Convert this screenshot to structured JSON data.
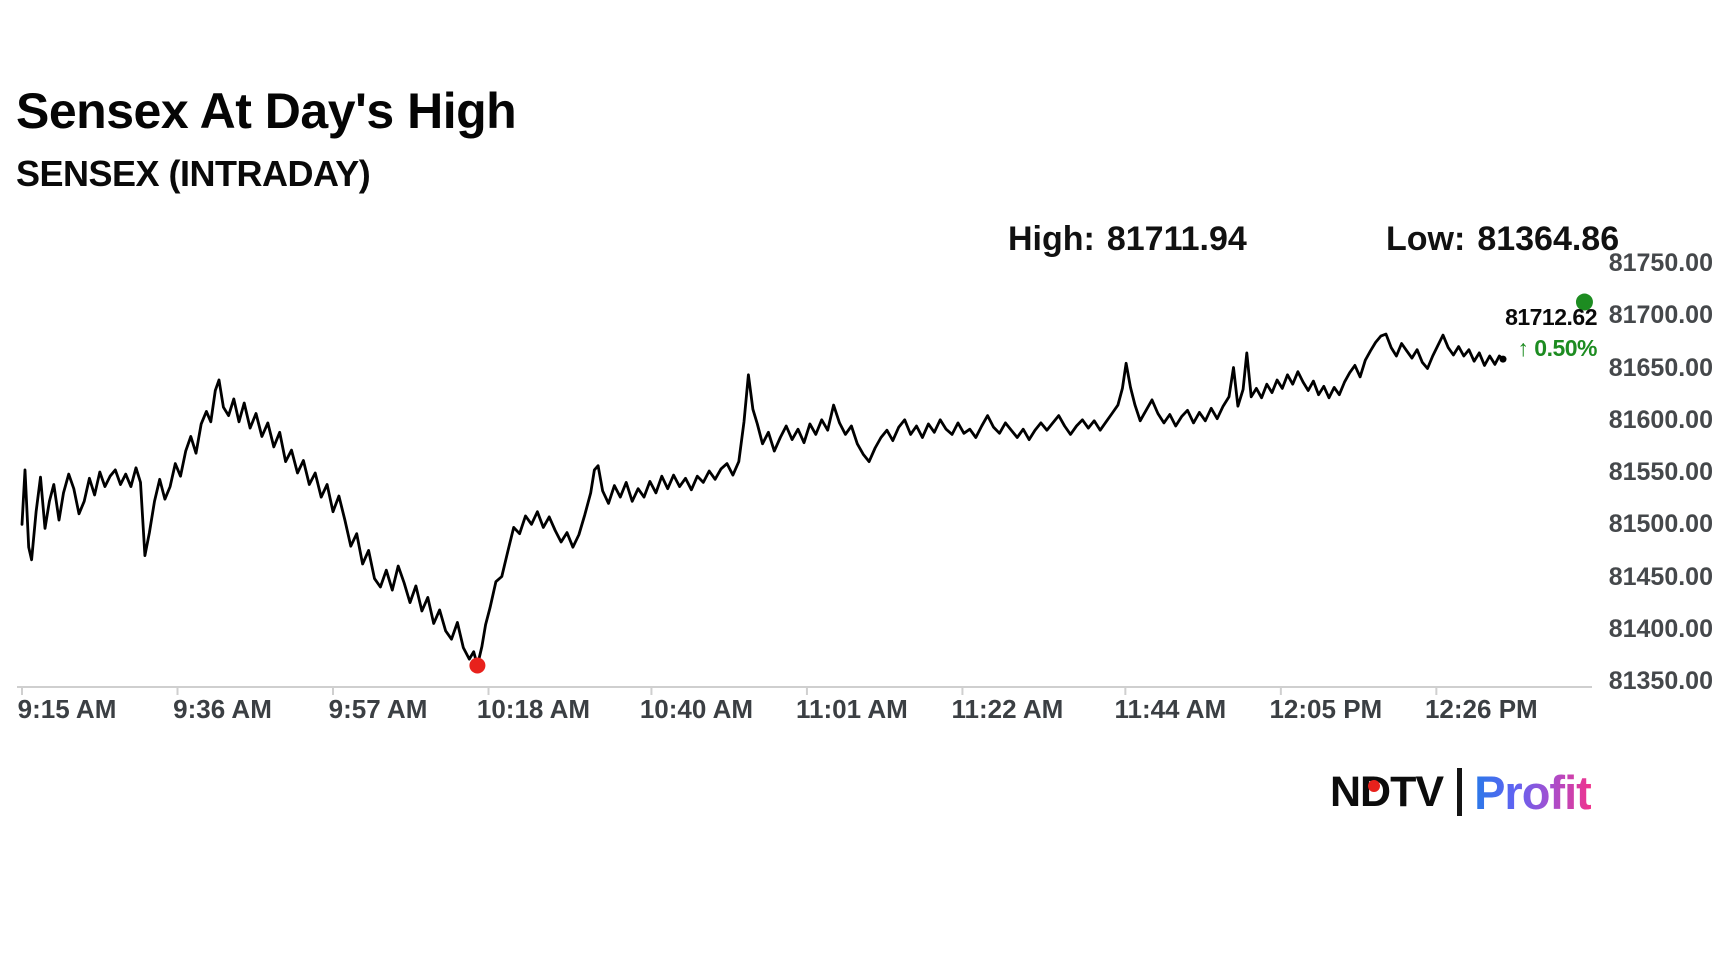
{
  "header": {
    "title": "Sensex At Day's High",
    "subtitle": "SENSEX (INTRADAY)"
  },
  "stats": {
    "high_label": "High:",
    "high_value": "81711.94",
    "low_label": "Low:",
    "low_value": "81364.86"
  },
  "live": {
    "price": "81712.62",
    "arrow": "↑",
    "change_pct": "0.50%"
  },
  "logo": {
    "ndtv": "NDTV",
    "divider": "|",
    "profit": "Profit"
  },
  "colors": {
    "line": "#000000",
    "background": "#ffffff",
    "axis": "#cfcfcf",
    "axis_label": "#45484b",
    "low_dot": "#e8211c",
    "live_dot": "#1d8c21",
    "change_green": "#1d8c21",
    "profit_gradient": [
      "#2a79e8",
      "#5f63f2",
      "#a44fd0",
      "#f1338c"
    ]
  },
  "chart_data": {
    "type": "line",
    "title": "SENSEX (INTRADAY)",
    "xlabel": "",
    "ylabel": "",
    "x_unit": "minutes after 9:15 AM",
    "ylim": [
      81350,
      81750
    ],
    "grid": false,
    "legend": false,
    "day_high": 81711.94,
    "day_low": 81364.86,
    "last_price": 81712.62,
    "change_pct": 0.5,
    "y_ticks": [
      {
        "value": 81750,
        "label": "81750.00"
      },
      {
        "value": 81700,
        "label": "81700.00"
      },
      {
        "value": 81650,
        "label": "81650.00"
      },
      {
        "value": 81600,
        "label": "81600.00"
      },
      {
        "value": 81550,
        "label": "81550.00"
      },
      {
        "value": 81500,
        "label": "81500.00"
      },
      {
        "value": 81450,
        "label": "81450.00"
      },
      {
        "value": 81400,
        "label": "81400.00"
      },
      {
        "value": 81350,
        "label": "81350.00"
      }
    ],
    "x_ticks": [
      {
        "t": 0,
        "label": "9:15 AM"
      },
      {
        "t": 21,
        "label": "9:36 AM"
      },
      {
        "t": 42,
        "label": "9:57 AM"
      },
      {
        "t": 63,
        "label": "10:18 AM"
      },
      {
        "t": 85,
        "label": "10:40 AM"
      },
      {
        "t": 106,
        "label": "11:01 AM"
      },
      {
        "t": 127,
        "label": "11:22 AM"
      },
      {
        "t": 149,
        "label": "11:44 AM"
      },
      {
        "t": 170,
        "label": "12:05 PM"
      },
      {
        "t": 191,
        "label": "12:26 PM"
      }
    ],
    "markers": {
      "low": {
        "t": 61.5,
        "value": 81364.86,
        "color": "#e8211c",
        "r": 8
      },
      "line_end": {
        "t": 200,
        "value": 81658,
        "color": "#000000",
        "r": 3.5
      },
      "live": {
        "t": 211,
        "value": 81712.62,
        "color": "#1d8c21",
        "r": 8.5
      }
    },
    "series": [
      {
        "name": "SENSEX",
        "color": "#000000",
        "points": [
          [
            0,
            81500
          ],
          [
            0.4,
            81552
          ],
          [
            0.9,
            81478
          ],
          [
            1.3,
            81466
          ],
          [
            1.9,
            81512
          ],
          [
            2.5,
            81545
          ],
          [
            3.1,
            81496
          ],
          [
            3.7,
            81522
          ],
          [
            4.3,
            81538
          ],
          [
            5,
            81504
          ],
          [
            5.6,
            81530
          ],
          [
            6.3,
            81548
          ],
          [
            7,
            81534
          ],
          [
            7.7,
            81510
          ],
          [
            8.4,
            81522
          ],
          [
            9.1,
            81544
          ],
          [
            9.8,
            81528
          ],
          [
            10.5,
            81550
          ],
          [
            11.2,
            81536
          ],
          [
            11.9,
            81546
          ],
          [
            12.6,
            81552
          ],
          [
            13.3,
            81538
          ],
          [
            14,
            81548
          ],
          [
            14.7,
            81536
          ],
          [
            15.4,
            81554
          ],
          [
            16,
            81540
          ],
          [
            16.6,
            81470
          ],
          [
            17.2,
            81492
          ],
          [
            17.9,
            81522
          ],
          [
            18.6,
            81543
          ],
          [
            19.3,
            81524
          ],
          [
            20,
            81536
          ],
          [
            20.7,
            81558
          ],
          [
            21.4,
            81546
          ],
          [
            22.1,
            81570
          ],
          [
            22.8,
            81584
          ],
          [
            23.5,
            81568
          ],
          [
            24.2,
            81596
          ],
          [
            24.9,
            81608
          ],
          [
            25.5,
            81598
          ],
          [
            26.1,
            81628
          ],
          [
            26.6,
            81638
          ],
          [
            27.2,
            81612
          ],
          [
            27.9,
            81604
          ],
          [
            28.6,
            81620
          ],
          [
            29.3,
            81598
          ],
          [
            30,
            81616
          ],
          [
            30.8,
            81592
          ],
          [
            31.6,
            81606
          ],
          [
            32.4,
            81584
          ],
          [
            33.2,
            81597
          ],
          [
            34,
            81574
          ],
          [
            34.8,
            81588
          ],
          [
            35.6,
            81560
          ],
          [
            36.4,
            81571
          ],
          [
            37.2,
            81549
          ],
          [
            38,
            81561
          ],
          [
            38.8,
            81538
          ],
          [
            39.6,
            81549
          ],
          [
            40.4,
            81526
          ],
          [
            41.2,
            81538
          ],
          [
            42,
            81512
          ],
          [
            42.8,
            81527
          ],
          [
            43.6,
            81504
          ],
          [
            44.4,
            81479
          ],
          [
            45.2,
            81491
          ],
          [
            46,
            81462
          ],
          [
            46.8,
            81475
          ],
          [
            47.6,
            81448
          ],
          [
            48.4,
            81440
          ],
          [
            49.2,
            81456
          ],
          [
            50,
            81437
          ],
          [
            50.8,
            81460
          ],
          [
            51.6,
            81444
          ],
          [
            52.4,
            81425
          ],
          [
            53.2,
            81441
          ],
          [
            54,
            81417
          ],
          [
            54.8,
            81430
          ],
          [
            55.6,
            81405
          ],
          [
            56.4,
            81418
          ],
          [
            57.2,
            81398
          ],
          [
            58,
            81390
          ],
          [
            58.8,
            81406
          ],
          [
            59.6,
            81382
          ],
          [
            60.4,
            81371
          ],
          [
            61,
            81378
          ],
          [
            61.5,
            81364.86
          ],
          [
            62.1,
            81383
          ],
          [
            62.6,
            81404
          ],
          [
            63.2,
            81420
          ],
          [
            64,
            81445
          ],
          [
            64.8,
            81450
          ],
          [
            65.6,
            81474
          ],
          [
            66.4,
            81497
          ],
          [
            67.2,
            81491
          ],
          [
            68,
            81508
          ],
          [
            68.8,
            81500
          ],
          [
            69.6,
            81512
          ],
          [
            70.4,
            81497
          ],
          [
            71.2,
            81507
          ],
          [
            72,
            81494
          ],
          [
            72.8,
            81483
          ],
          [
            73.6,
            81492
          ],
          [
            74.4,
            81478
          ],
          [
            75.2,
            81490
          ],
          [
            76,
            81509
          ],
          [
            76.8,
            81530
          ],
          [
            77.3,
            81552
          ],
          [
            77.8,
            81556
          ],
          [
            78.4,
            81532
          ],
          [
            79.2,
            81520
          ],
          [
            80,
            81537
          ],
          [
            80.8,
            81526
          ],
          [
            81.6,
            81540
          ],
          [
            82.4,
            81522
          ],
          [
            83.2,
            81534
          ],
          [
            84,
            81526
          ],
          [
            84.8,
            81541
          ],
          [
            85.6,
            81530
          ],
          [
            86.4,
            81546
          ],
          [
            87.2,
            81534
          ],
          [
            88,
            81547
          ],
          [
            88.8,
            81536
          ],
          [
            89.6,
            81544
          ],
          [
            90.4,
            81533
          ],
          [
            91.2,
            81546
          ],
          [
            92,
            81540
          ],
          [
            92.8,
            81551
          ],
          [
            93.6,
            81543
          ],
          [
            94.4,
            81553
          ],
          [
            95.2,
            81558
          ],
          [
            96,
            81547
          ],
          [
            96.8,
            81560
          ],
          [
            97.5,
            81598
          ],
          [
            98.1,
            81643
          ],
          [
            98.7,
            81610
          ],
          [
            99.3,
            81596
          ],
          [
            100,
            81577
          ],
          [
            100.8,
            81588
          ],
          [
            101.6,
            81570
          ],
          [
            102.4,
            81583
          ],
          [
            103.2,
            81594
          ],
          [
            104,
            81581
          ],
          [
            104.8,
            81591
          ],
          [
            105.6,
            81578
          ],
          [
            106.4,
            81596
          ],
          [
            107.2,
            81586
          ],
          [
            108,
            81600
          ],
          [
            108.8,
            81590
          ],
          [
            109.6,
            81614
          ],
          [
            110.4,
            81597
          ],
          [
            111.2,
            81586
          ],
          [
            112,
            81594
          ],
          [
            112.8,
            81577
          ],
          [
            113.6,
            81567
          ],
          [
            114.4,
            81560
          ],
          [
            115.2,
            81573
          ],
          [
            116,
            81583
          ],
          [
            116.8,
            81590
          ],
          [
            117.6,
            81580
          ],
          [
            118.4,
            81593
          ],
          [
            119.2,
            81600
          ],
          [
            120,
            81586
          ],
          [
            120.8,
            81594
          ],
          [
            121.6,
            81583
          ],
          [
            122.4,
            81596
          ],
          [
            123.2,
            81588
          ],
          [
            124,
            81600
          ],
          [
            124.8,
            81591
          ],
          [
            125.6,
            81586
          ],
          [
            126.4,
            81597
          ],
          [
            127.2,
            81587
          ],
          [
            128,
            81591
          ],
          [
            128.8,
            81583
          ],
          [
            129.6,
            81594
          ],
          [
            130.4,
            81604
          ],
          [
            131.2,
            81593
          ],
          [
            132,
            81587
          ],
          [
            132.8,
            81597
          ],
          [
            133.6,
            81590
          ],
          [
            134.4,
            81583
          ],
          [
            135.2,
            81591
          ],
          [
            136,
            81581
          ],
          [
            136.8,
            81590
          ],
          [
            137.6,
            81597
          ],
          [
            138.4,
            81590
          ],
          [
            139.2,
            81597
          ],
          [
            140,
            81604
          ],
          [
            140.8,
            81594
          ],
          [
            141.6,
            81586
          ],
          [
            142.4,
            81594
          ],
          [
            143.2,
            81600
          ],
          [
            144,
            81592
          ],
          [
            144.8,
            81599
          ],
          [
            145.6,
            81590
          ],
          [
            146.4,
            81598
          ],
          [
            147.2,
            81606
          ],
          [
            148,
            81614
          ],
          [
            148.6,
            81630
          ],
          [
            149.1,
            81654
          ],
          [
            149.7,
            81631
          ],
          [
            150.3,
            81614
          ],
          [
            151,
            81599
          ],
          [
            151.8,
            81609
          ],
          [
            152.6,
            81619
          ],
          [
            153.4,
            81606
          ],
          [
            154.2,
            81597
          ],
          [
            155,
            81605
          ],
          [
            155.8,
            81594
          ],
          [
            156.6,
            81603
          ],
          [
            157.4,
            81609
          ],
          [
            158.2,
            81597
          ],
          [
            159,
            81607
          ],
          [
            159.8,
            81599
          ],
          [
            160.6,
            81611
          ],
          [
            161.4,
            81601
          ],
          [
            162.2,
            81613
          ],
          [
            163,
            81622
          ],
          [
            163.6,
            81650
          ],
          [
            164.2,
            81613
          ],
          [
            164.9,
            81629
          ],
          [
            165.4,
            81664
          ],
          [
            166,
            81622
          ],
          [
            166.7,
            81630
          ],
          [
            167.4,
            81621
          ],
          [
            168.1,
            81634
          ],
          [
            168.8,
            81626
          ],
          [
            169.5,
            81638
          ],
          [
            170.2,
            81630
          ],
          [
            170.9,
            81643
          ],
          [
            171.6,
            81634
          ],
          [
            172.3,
            81646
          ],
          [
            173,
            81636
          ],
          [
            173.7,
            81628
          ],
          [
            174.4,
            81637
          ],
          [
            175.1,
            81624
          ],
          [
            175.8,
            81632
          ],
          [
            176.5,
            81621
          ],
          [
            177.2,
            81631
          ],
          [
            177.9,
            81624
          ],
          [
            178.6,
            81636
          ],
          [
            179.3,
            81645
          ],
          [
            180,
            81652
          ],
          [
            180.7,
            81641
          ],
          [
            181.4,
            81657
          ],
          [
            182.1,
            81666
          ],
          [
            182.8,
            81674
          ],
          [
            183.5,
            81680
          ],
          [
            184.2,
            81682
          ],
          [
            184.9,
            81669
          ],
          [
            185.6,
            81661
          ],
          [
            186.3,
            81673
          ],
          [
            187,
            81666
          ],
          [
            187.7,
            81659
          ],
          [
            188.4,
            81667
          ],
          [
            189.1,
            81655
          ],
          [
            189.8,
            81649
          ],
          [
            190.5,
            81661
          ],
          [
            191.2,
            81671
          ],
          [
            191.9,
            81681
          ],
          [
            192.6,
            81669
          ],
          [
            193.3,
            81662
          ],
          [
            194,
            81670
          ],
          [
            194.7,
            81661
          ],
          [
            195.4,
            81667
          ],
          [
            196.1,
            81656
          ],
          [
            196.8,
            81664
          ],
          [
            197.5,
            81652
          ],
          [
            198.2,
            81661
          ],
          [
            198.9,
            81653
          ],
          [
            199.5,
            81661
          ],
          [
            200,
            81658
          ]
        ]
      }
    ]
  }
}
